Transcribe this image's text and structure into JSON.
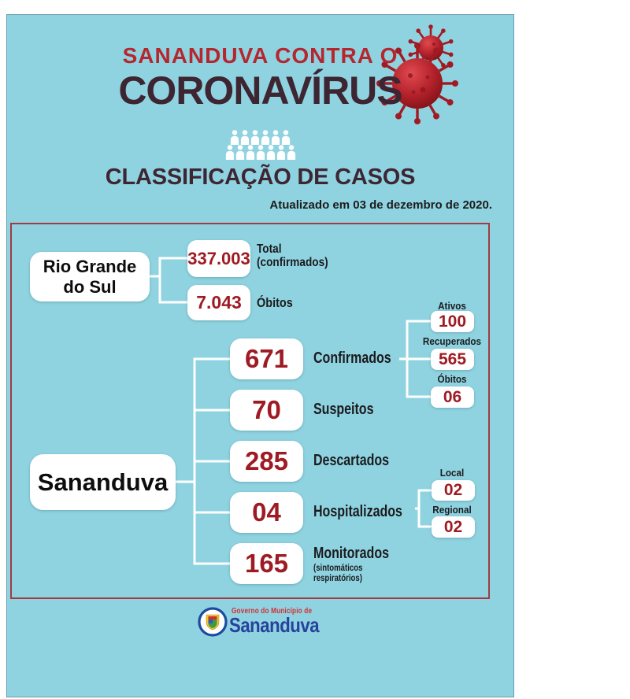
{
  "page": {
    "title_line1": "SANANDUVA CONTRA O",
    "title_line2": "CORONAVÍRUS",
    "section_heading": "CLASSIFICAÇÃO DE CASOS",
    "updated_text": "Atualizado em 03 de dezembro de 2020."
  },
  "colors": {
    "card_bg": "#8fd3e1",
    "title_red": "#b5272f",
    "title_maroon": "#3e2532",
    "number_red": "#9e1b23",
    "frame_red": "#a23a42",
    "connector_white": "#ffffff",
    "label_dark": "#1b1b1d",
    "logo_red": "#d32f35",
    "logo_blue": "#27429b"
  },
  "icons": {
    "virus": "coronavirus-icon",
    "crowd": "crowd-people-icon",
    "emblem": "municipal-crest-icon"
  },
  "crowd": {
    "rows": [
      6,
      7
    ]
  },
  "rio_grande": {
    "label_line1": "Rio Grande",
    "label_line2": "do Sul",
    "stats": [
      {
        "value": "337.003",
        "label_line1": "Total",
        "label_line2": "(confirmados)"
      },
      {
        "value": "7.043",
        "label_line1": "Óbitos",
        "label_line2": ""
      }
    ]
  },
  "sananduva": {
    "label": "Sananduva",
    "stats": [
      {
        "value": "671",
        "label": "Confirmados"
      },
      {
        "value": "70",
        "label": "Suspeitos"
      },
      {
        "value": "285",
        "label": "Descartados"
      },
      {
        "value": "04",
        "label": "Hospitalizados"
      },
      {
        "value": "165",
        "label": "Monitorados",
        "sublabel_line1": "(sintomáticos",
        "sublabel_line2": "respiratórios)"
      }
    ],
    "confirmados_breakdown": [
      {
        "label": "Ativos",
        "value": "100"
      },
      {
        "label": "Recuperados",
        "value": "565"
      },
      {
        "label": "Óbitos",
        "value": "06"
      }
    ],
    "hospitalizados_breakdown": [
      {
        "label": "Local",
        "value": "02"
      },
      {
        "label": "Regional",
        "value": "02"
      }
    ]
  },
  "footer_logo": {
    "line1": "Governo do Município de",
    "line2": "Sananduva"
  }
}
